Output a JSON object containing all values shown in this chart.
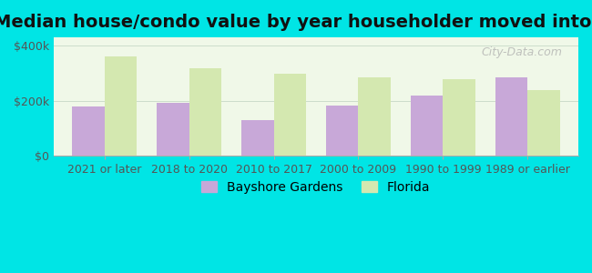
{
  "title": "Median house/condo value by year householder moved into unit",
  "categories": [
    "2021 or later",
    "2018 to 2020",
    "2010 to 2017",
    "2000 to 2009",
    "1990 to 1999",
    "1989 or earlier"
  ],
  "bayshore_values": [
    178000,
    193000,
    130000,
    183000,
    218000,
    285000
  ],
  "florida_values": [
    362000,
    318000,
    298000,
    285000,
    278000,
    238000
  ],
  "bayshore_color": "#c8a8d8",
  "florida_color": "#d4e8b0",
  "background_color": "#00e5e5",
  "plot_bg_color_top": "#f0f8e8",
  "plot_bg_color_bottom": "#e8f8f0",
  "yticks": [
    0,
    200000,
    400000
  ],
  "ytick_labels": [
    "$0",
    "$200k",
    "$400k"
  ],
  "ylim": [
    0,
    430000
  ],
  "bar_width": 0.38,
  "legend_labels": [
    "Bayshore Gardens",
    "Florida"
  ],
  "watermark": "City-Data.com",
  "title_fontsize": 14,
  "tick_fontsize": 9,
  "legend_fontsize": 10
}
